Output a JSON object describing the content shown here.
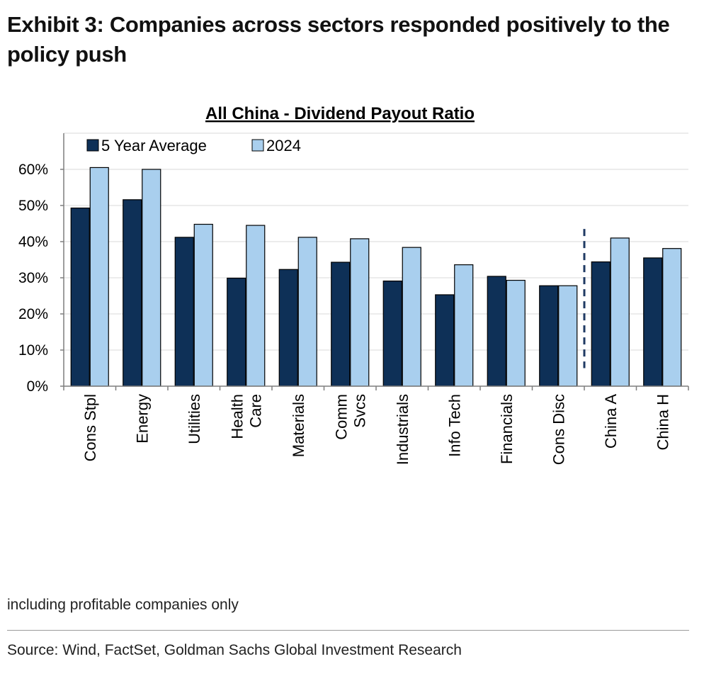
{
  "exhibit": {
    "title": "Exhibit 3: Companies across sectors responded positively to the policy push"
  },
  "footnote": "including profitable companies only",
  "source": "Source: Wind, FactSet, Goldman Sachs Global Investment Research",
  "chart_data": {
    "type": "bar",
    "title": "All China - Dividend Payout Ratio",
    "xlabel": "",
    "ylabel": "",
    "ylim": [
      0,
      70
    ],
    "yticks": [
      0,
      10,
      20,
      30,
      40,
      50,
      60
    ],
    "ytick_labels": [
      "0%",
      "10%",
      "20%",
      "30%",
      "40%",
      "50%",
      "60%"
    ],
    "y_unit": "%",
    "grid": true,
    "legend_position": "top-left",
    "categories": [
      [
        "Cons Stpl"
      ],
      [
        "Energy"
      ],
      [
        "Utilities"
      ],
      [
        "Health",
        "Care"
      ],
      [
        "Materials"
      ],
      [
        "Comm",
        "Svcs"
      ],
      [
        "Industrials"
      ],
      [
        "Info Tech"
      ],
      [
        "Financials"
      ],
      [
        "Cons Disc"
      ],
      [
        "China A"
      ],
      [
        "China H"
      ]
    ],
    "series": [
      {
        "name": "5 Year Average",
        "color": "#0e3057",
        "values": [
          49.3,
          51.6,
          41.2,
          29.9,
          32.3,
          34.3,
          29.1,
          25.3,
          30.4,
          27.8,
          34.4,
          35.5
        ]
      },
      {
        "name": "2024",
        "color": "#a9cfee",
        "values": [
          60.5,
          60.0,
          44.8,
          44.5,
          41.2,
          40.8,
          38.4,
          33.6,
          29.3,
          27.8,
          41.0,
          38.1
        ]
      }
    ],
    "separator_after_category": 9
  }
}
